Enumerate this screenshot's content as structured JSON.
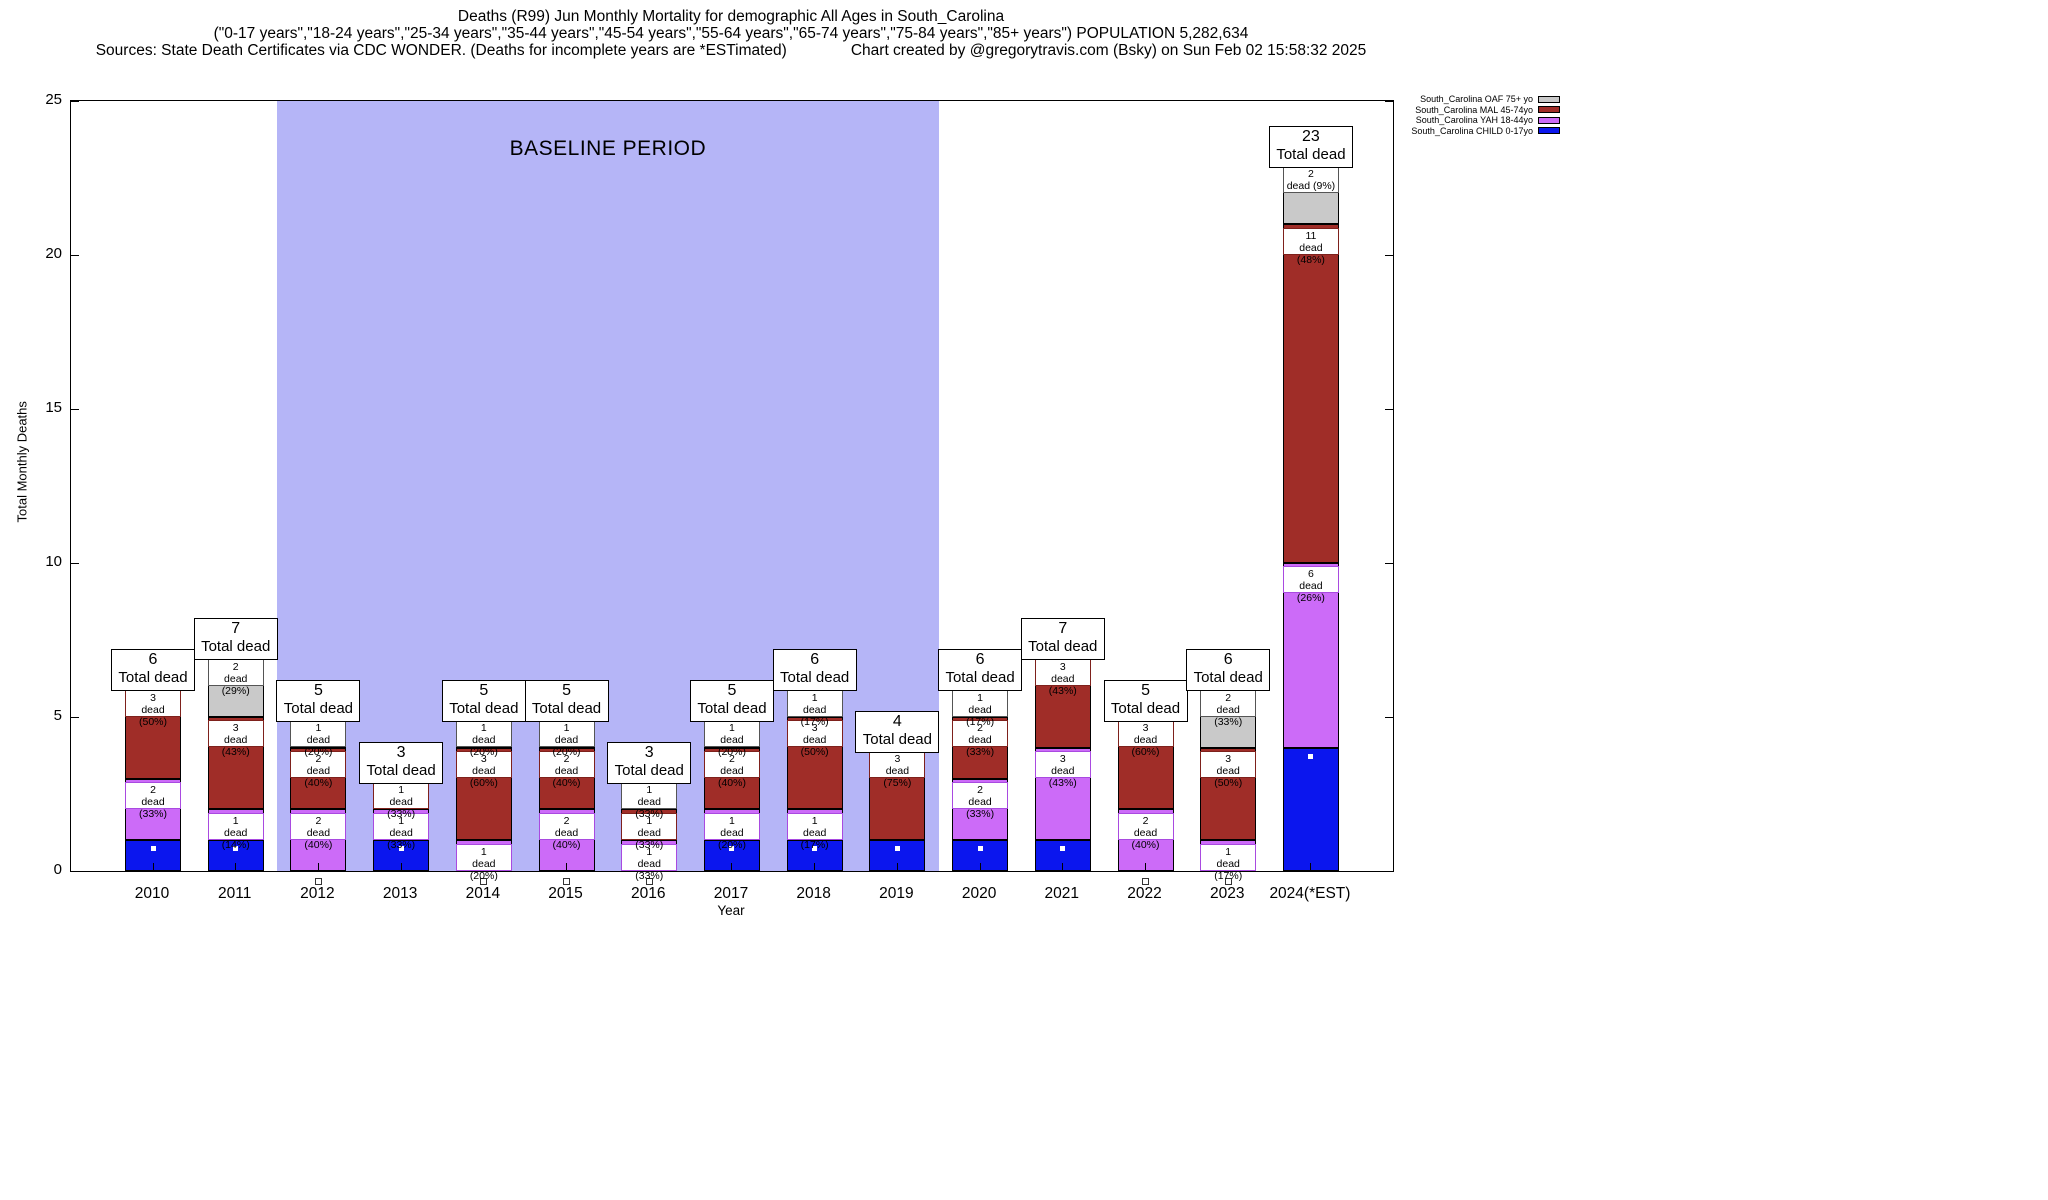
{
  "header": {
    "title_line1": "Deaths (R99) Jun Monthly Mortality for demographic All Ages in South_Carolina",
    "title_line2": "(\"0-17 years\",\"18-24 years\",\"25-34 years\",\"35-44 years\",\"45-54 years\",\"55-64 years\",\"65-74 years\",\"75-84 years\",\"85+ years\") POPULATION 5,282,634",
    "title_line3_sources": "Sources: State Death Certificates via CDC WONDER. (Deaths for incomplete years are *ESTimated)",
    "title_line3_credit": "Chart created by @gregorytravis.com (Bsky) on Sun Feb 02 15:58:32 2025"
  },
  "chart_data": {
    "type": "bar",
    "stacked": true,
    "ylabel": "Total Monthly Deaths",
    "xlabel": "Year",
    "ylim": [
      0,
      25
    ],
    "yticks": [
      0,
      5,
      10,
      15,
      20,
      25
    ],
    "grid": false,
    "legend_position": "outside-top-right",
    "baseline_region": {
      "label": "BASELINE PERIOD",
      "start_after_year": "2011",
      "end_with_year": "2019",
      "color": "#b5b5f7"
    },
    "legend": [
      {
        "key": "oaf",
        "label": "South_Carolina OAF 75+ yo",
        "color": "#c9c9c9"
      },
      {
        "key": "mal",
        "label": "South_Carolina MAL 45-74yo",
        "color": "#a02d28"
      },
      {
        "key": "yah",
        "label": "South_Carolina YAH 18-44yo",
        "color": "#cc6bf8"
      },
      {
        "key": "child",
        "label": "South_Carolina CHILD 0-17yo",
        "color": "#0b16ee"
      }
    ],
    "total_label_suffix": "Total dead",
    "segment_label_word": "dead",
    "categories": [
      "2010",
      "2011",
      "2012",
      "2013",
      "2014",
      "2015",
      "2016",
      "2017",
      "2018",
      "2019",
      "2020",
      "2021",
      "2022",
      "2023",
      "2024(*EST)"
    ],
    "years": [
      {
        "label": "2010",
        "total": 6,
        "segments": [
          {
            "series": "child",
            "value": 1
          },
          {
            "series": "yah",
            "value": 2,
            "pct": "33%"
          },
          {
            "series": "mal",
            "value": 3,
            "pct": "50%"
          }
        ]
      },
      {
        "label": "2011",
        "total": 7,
        "segments": [
          {
            "series": "child",
            "value": 1
          },
          {
            "series": "yah",
            "value": 1,
            "pct": "14%"
          },
          {
            "series": "mal",
            "value": 3,
            "pct": "43%"
          },
          {
            "series": "oaf",
            "value": 2,
            "pct": "29%"
          }
        ]
      },
      {
        "label": "2012",
        "total": 5,
        "segments": [
          {
            "series": "child",
            "value": 0
          },
          {
            "series": "yah",
            "value": 2,
            "pct": "40%"
          },
          {
            "series": "mal",
            "value": 2,
            "pct": "40%"
          },
          {
            "series": "oaf",
            "value": 1,
            "pct": "20%"
          }
        ]
      },
      {
        "label": "2013",
        "total": 3,
        "segments": [
          {
            "series": "child",
            "value": 1
          },
          {
            "series": "yah",
            "value": 1,
            "pct": "33%"
          },
          {
            "series": "mal",
            "value": 1,
            "pct": "33%"
          }
        ]
      },
      {
        "label": "2014",
        "total": 5,
        "segments": [
          {
            "series": "child",
            "value": 0
          },
          {
            "series": "yah",
            "value": 1,
            "pct": "20%"
          },
          {
            "series": "mal",
            "value": 3,
            "pct": "60%"
          },
          {
            "series": "oaf",
            "value": 1,
            "pct": "20%"
          }
        ]
      },
      {
        "label": "2015",
        "total": 5,
        "segments": [
          {
            "series": "child",
            "value": 0
          },
          {
            "series": "yah",
            "value": 2,
            "pct": "40%"
          },
          {
            "series": "mal",
            "value": 2,
            "pct": "40%"
          },
          {
            "series": "oaf",
            "value": 1,
            "pct": "20%"
          }
        ]
      },
      {
        "label": "2016",
        "total": 3,
        "segments": [
          {
            "series": "child",
            "value": 0
          },
          {
            "series": "yah",
            "value": 1,
            "pct": "33%"
          },
          {
            "series": "mal",
            "value": 1,
            "pct": "33%"
          },
          {
            "series": "oaf",
            "value": 1,
            "pct": "33%"
          }
        ]
      },
      {
        "label": "2017",
        "total": 5,
        "segments": [
          {
            "series": "child",
            "value": 1
          },
          {
            "series": "yah",
            "value": 1,
            "pct": "20%"
          },
          {
            "series": "mal",
            "value": 2,
            "pct": "40%"
          },
          {
            "series": "oaf",
            "value": 1,
            "pct": "20%"
          }
        ]
      },
      {
        "label": "2018",
        "total": 6,
        "segments": [
          {
            "series": "child",
            "value": 1
          },
          {
            "series": "yah",
            "value": 1,
            "pct": "17%"
          },
          {
            "series": "mal",
            "value": 3,
            "pct": "50%"
          },
          {
            "series": "oaf",
            "value": 1,
            "pct": "17%"
          }
        ]
      },
      {
        "label": "2019",
        "total": 4,
        "segments": [
          {
            "series": "child",
            "value": 1
          },
          {
            "series": "mal",
            "value": 3,
            "pct": "75%"
          }
        ]
      },
      {
        "label": "2020",
        "total": 6,
        "segments": [
          {
            "series": "child",
            "value": 1
          },
          {
            "series": "yah",
            "value": 2,
            "pct": "33%"
          },
          {
            "series": "mal",
            "value": 2,
            "pct": "33%"
          },
          {
            "series": "oaf",
            "value": 1,
            "pct": "17%"
          }
        ]
      },
      {
        "label": "2021",
        "total": 7,
        "segments": [
          {
            "series": "child",
            "value": 1
          },
          {
            "series": "yah",
            "value": 3,
            "pct": "43%"
          },
          {
            "series": "mal",
            "value": 3,
            "pct": "43%"
          }
        ]
      },
      {
        "label": "2022",
        "total": 5,
        "segments": [
          {
            "series": "child",
            "value": 0
          },
          {
            "series": "yah",
            "value": 2,
            "pct": "40%"
          },
          {
            "series": "mal",
            "value": 3,
            "pct": "60%"
          }
        ]
      },
      {
        "label": "2023",
        "total": 6,
        "segments": [
          {
            "series": "child",
            "value": 0
          },
          {
            "series": "yah",
            "value": 1,
            "pct": "17%"
          },
          {
            "series": "mal",
            "value": 3,
            "pct": "50%"
          },
          {
            "series": "oaf",
            "value": 2,
            "pct": "33%"
          }
        ]
      },
      {
        "label": "2024(*EST)",
        "total": 23,
        "segments": [
          {
            "series": "child",
            "value": 4
          },
          {
            "series": "yah",
            "value": 6,
            "pct": "26%"
          },
          {
            "series": "mal",
            "value": 11,
            "pct": "48%"
          },
          {
            "series": "oaf",
            "value": 2,
            "pct": "9%"
          }
        ]
      }
    ]
  }
}
